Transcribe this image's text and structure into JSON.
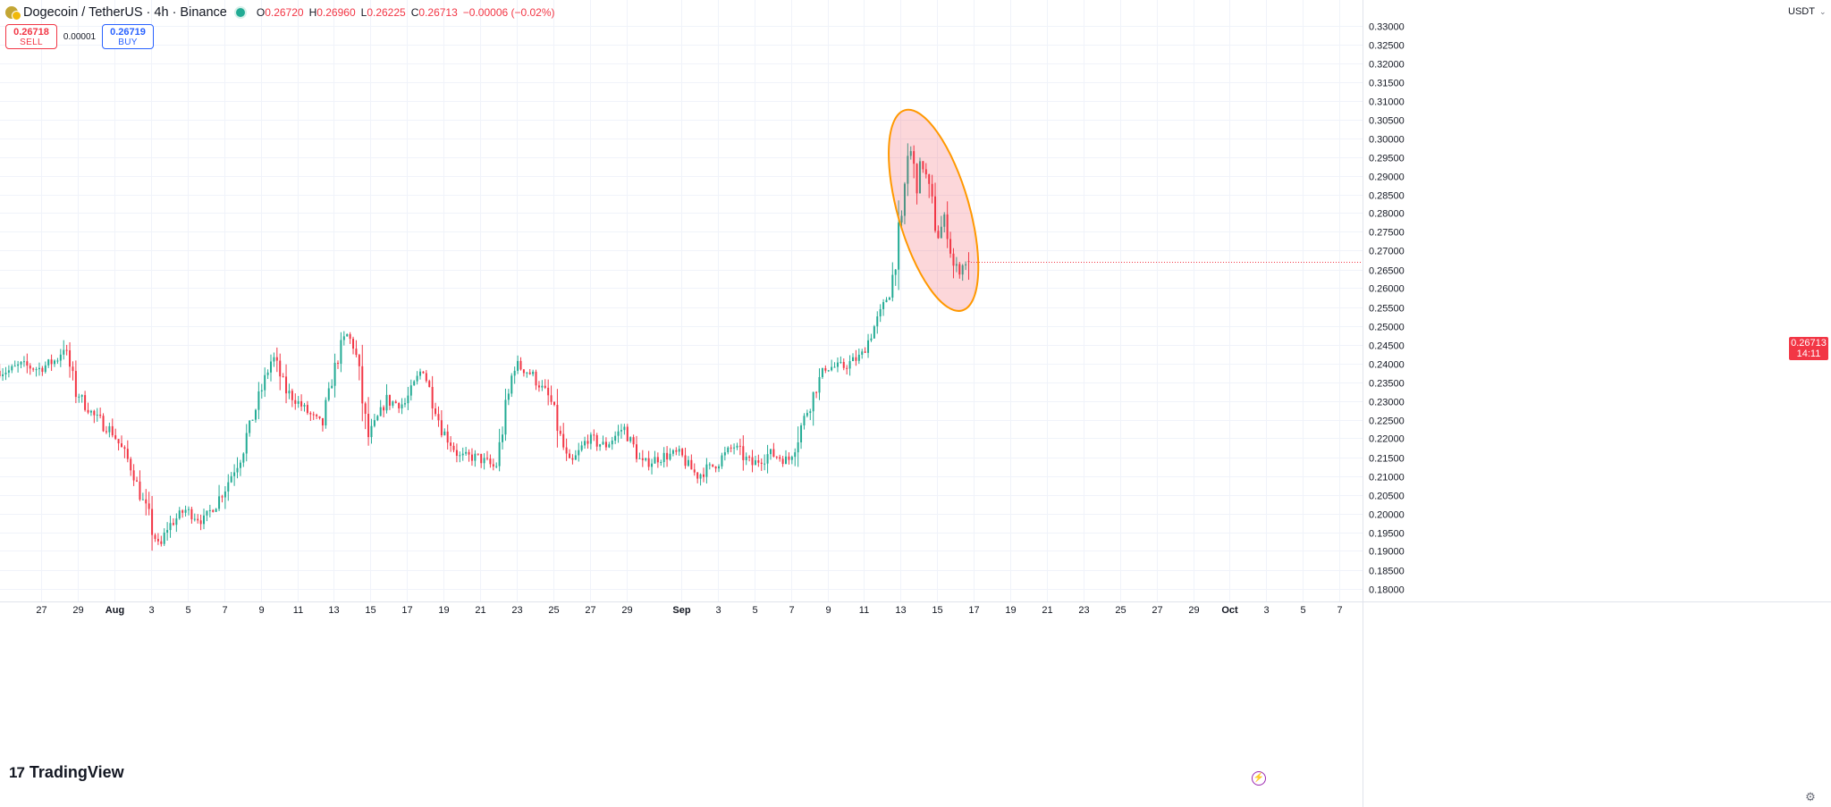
{
  "header": {
    "symbol_title": "Dogecoin / TetherUS · 4h · Binance",
    "ohlc": [
      {
        "label": "O",
        "value": "0.26720"
      },
      {
        "label": "H",
        "value": "0.26960"
      },
      {
        "label": "L",
        "value": "0.26225"
      },
      {
        "label": "C",
        "value": "0.26713"
      },
      {
        "label": "",
        "value": "−0.00006 (−0.02%)"
      }
    ]
  },
  "trade": {
    "sell_price": "0.26718",
    "sell_label": "SELL",
    "spread": "0.00001",
    "buy_price": "0.26719",
    "buy_label": "BUY"
  },
  "price_axis": {
    "currency": "USDT",
    "last_price": "0.26713",
    "countdown": "14:11"
  },
  "brand": "TradingView",
  "icons": {
    "lightning": "lightning-icon",
    "settings": "gear-icon",
    "dropdown": "chevron-down-icon"
  },
  "colors": {
    "up": "#22ab94",
    "down": "#f23645",
    "highlight_stroke": "#ff9800",
    "highlight_fill": "rgba(242,54,69,0.2)",
    "accent": "#2962ff"
  },
  "chart_data": {
    "type": "candlestick",
    "interval": "4h",
    "y_range": [
      0.1775,
      0.3355
    ],
    "y_ticks": [
      "0.33000",
      "0.32500",
      "0.32000",
      "0.31500",
      "0.31000",
      "0.30500",
      "0.30000",
      "0.29500",
      "0.29000",
      "0.28500",
      "0.28000",
      "0.27500",
      "0.27000",
      "0.26500",
      "0.26000",
      "0.25500",
      "0.25000",
      "0.24500",
      "0.24000",
      "0.23500",
      "0.23000",
      "0.22500",
      "0.22000",
      "0.21500",
      "0.21000",
      "0.20500",
      "0.20000",
      "0.19500",
      "0.19000",
      "0.18500",
      "0.18000"
    ],
    "x_labels": [
      {
        "label": "27",
        "day": -4
      },
      {
        "label": "29",
        "day": -2
      },
      {
        "label": "Aug",
        "day": 0,
        "bold": true
      },
      {
        "label": "3",
        "day": 2
      },
      {
        "label": "5",
        "day": 4
      },
      {
        "label": "7",
        "day": 6
      },
      {
        "label": "9",
        "day": 8
      },
      {
        "label": "11",
        "day": 10
      },
      {
        "label": "13",
        "day": 12
      },
      {
        "label": "15",
        "day": 14
      },
      {
        "label": "17",
        "day": 16
      },
      {
        "label": "19",
        "day": 18
      },
      {
        "label": "21",
        "day": 20
      },
      {
        "label": "23",
        "day": 22
      },
      {
        "label": "25",
        "day": 24
      },
      {
        "label": "27",
        "day": 26
      },
      {
        "label": "29",
        "day": 28
      },
      {
        "label": "Sep",
        "day": 31,
        "bold": true
      },
      {
        "label": "3",
        "day": 33
      },
      {
        "label": "5",
        "day": 35
      },
      {
        "label": "7",
        "day": 37
      },
      {
        "label": "9",
        "day": 39
      },
      {
        "label": "11",
        "day": 41
      },
      {
        "label": "13",
        "day": 43
      },
      {
        "label": "15",
        "day": 45
      },
      {
        "label": "17",
        "day": 47
      },
      {
        "label": "19",
        "day": 49
      },
      {
        "label": "21",
        "day": 51
      },
      {
        "label": "23",
        "day": 53
      },
      {
        "label": "25",
        "day": 55
      },
      {
        "label": "27",
        "day": 57
      },
      {
        "label": "29",
        "day": 59
      },
      {
        "label": "Oct",
        "day": 61,
        "bold": true
      },
      {
        "label": "3",
        "day": 63
      },
      {
        "label": "5",
        "day": 65
      },
      {
        "label": "7",
        "day": 67
      }
    ],
    "series_daily_close": [
      [
        -5.6,
        0.238
      ],
      [
        -5,
        0.2395
      ],
      [
        -4,
        0.2385
      ],
      [
        -3,
        0.241
      ],
      [
        -2.6,
        0.245
      ],
      [
        -2,
        0.233
      ],
      [
        -1,
        0.226
      ],
      [
        0,
        0.222
      ],
      [
        1,
        0.213
      ],
      [
        2,
        0.199
      ],
      [
        2.6,
        0.19
      ],
      [
        3,
        0.196
      ],
      [
        4,
        0.201
      ],
      [
        5,
        0.198
      ],
      [
        6,
        0.205
      ],
      [
        7,
        0.215
      ],
      [
        8,
        0.23
      ],
      [
        8.8,
        0.242
      ],
      [
        9.5,
        0.233
      ],
      [
        10.5,
        0.228
      ],
      [
        11.5,
        0.223
      ],
      [
        12,
        0.235
      ],
      [
        12.8,
        0.248
      ],
      [
        13.3,
        0.244
      ],
      [
        14,
        0.22
      ],
      [
        15,
        0.23
      ],
      [
        16,
        0.229
      ],
      [
        17,
        0.239
      ],
      [
        18,
        0.223
      ],
      [
        19,
        0.215
      ],
      [
        20,
        0.215
      ],
      [
        21,
        0.212
      ],
      [
        22,
        0.24
      ],
      [
        23,
        0.237
      ],
      [
        24,
        0.23
      ],
      [
        25,
        0.212
      ],
      [
        26,
        0.22
      ],
      [
        27,
        0.218
      ],
      [
        28,
        0.223
      ],
      [
        29,
        0.213
      ],
      [
        30,
        0.215
      ],
      [
        31,
        0.216
      ],
      [
        32,
        0.21
      ],
      [
        33,
        0.213
      ],
      [
        34,
        0.218
      ],
      [
        35,
        0.213
      ],
      [
        36,
        0.216
      ],
      [
        37,
        0.214
      ],
      [
        38,
        0.227
      ],
      [
        39,
        0.239
      ],
      [
        40,
        0.239
      ],
      [
        41,
        0.242
      ],
      [
        42,
        0.253
      ],
      [
        42.6,
        0.26
      ],
      [
        43.2,
        0.278
      ],
      [
        43.6,
        0.299
      ],
      [
        44,
        0.288
      ],
      [
        44.4,
        0.293
      ],
      [
        44.8,
        0.283
      ],
      [
        45.2,
        0.274
      ],
      [
        45.6,
        0.279
      ],
      [
        46,
        0.266
      ],
      [
        46.4,
        0.265
      ],
      [
        46.7,
        0.2671
      ]
    ],
    "last_candle": {
      "open": 0.2672,
      "high": 0.2696,
      "low": 0.26225,
      "close": 0.26713
    },
    "annotation": {
      "shape": "ellipse",
      "day_start": 42.6,
      "day_end": 47.0,
      "price_top": 0.3085,
      "price_bottom": 0.253
    }
  }
}
